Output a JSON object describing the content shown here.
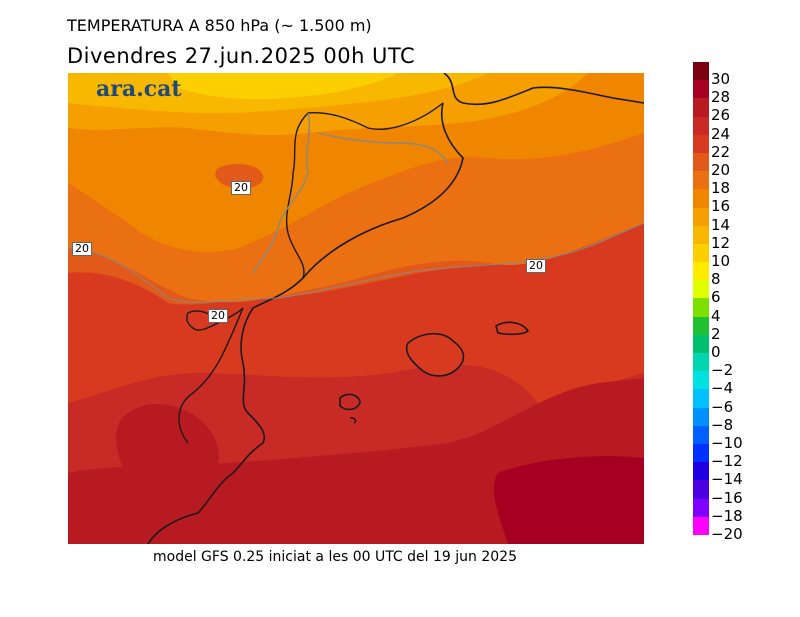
{
  "title": "TEMPERATURA A 850 hPa (~ 1.500 m)",
  "subtitle": "Divendres  27.jun.2025 00h UTC",
  "brand": "ara.cat",
  "footer": "model GFS 0.25 iniciat a les 00 UTC del 19 jun 2025",
  "contour_labels": [
    "20",
    "20",
    "20",
    "20"
  ],
  "legend": {
    "labels": [
      "30",
      "28",
      "26",
      "24",
      "22",
      "20",
      "18",
      "16",
      "14",
      "12",
      "10",
      "8",
      "6",
      "4",
      "2",
      "0",
      "−2",
      "−4",
      "−6",
      "−8",
      "−10",
      "−12",
      "−14",
      "−16",
      "−18",
      "−20"
    ],
    "colors": [
      "#7a0010",
      "#a50021",
      "#b81a22",
      "#c82a25",
      "#d83a20",
      "#e25a1a",
      "#ea7012",
      "#f08600",
      "#f5a000",
      "#f8b800",
      "#fcd000",
      "#ffea00",
      "#e0ff00",
      "#7de000",
      "#20c030",
      "#00c070",
      "#00d6b0",
      "#00e0e0",
      "#00c0ff",
      "#0090ff",
      "#0060ff",
      "#0030ff",
      "#2000e0",
      "#4a00e0",
      "#8000ff",
      "#ff00ff"
    ]
  },
  "colors": {
    "t28": "#a50021",
    "t26": "#b81a22",
    "t24": "#c82a25",
    "t22": "#d83a20",
    "t20": "#e25a1a",
    "t18": "#ea7012",
    "t16": "#f08600",
    "t14": "#f5a000",
    "t12": "#f8b800",
    "t10": "#fcd000",
    "coastline": "#1a1a1a",
    "border": "#888888"
  }
}
